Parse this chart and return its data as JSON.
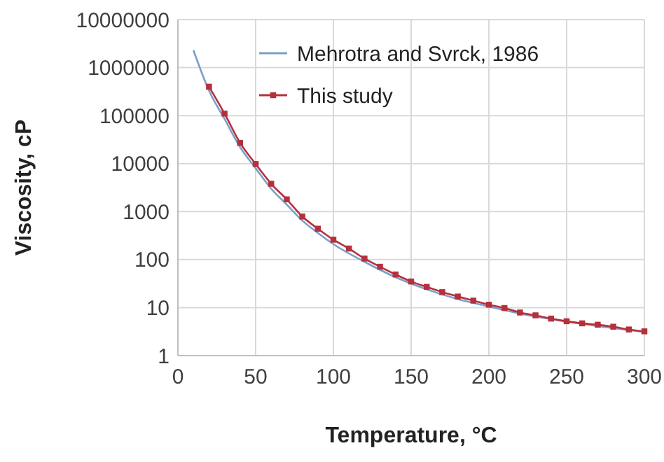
{
  "chart_data": {
    "type": "line",
    "xlabel": "Temperature, °C",
    "ylabel": "Viscosity, cP",
    "log": "y",
    "grid": true,
    "legend": "top right",
    "xlim": [
      0,
      300
    ],
    "xticks": [
      0,
      50,
      100,
      150,
      200,
      250,
      300
    ],
    "ylim": [
      1,
      10000000
    ],
    "yticks": [
      1,
      10,
      100,
      1000,
      10000,
      100000,
      1000000,
      10000000
    ],
    "series": [
      {
        "name": "Mehrotra and Svrck, 1986",
        "color": "#7b9fc9",
        "marker": "none",
        "x": [
          10,
          20,
          30,
          40,
          50,
          60,
          70,
          80,
          90,
          100,
          120,
          140,
          160,
          180,
          200,
          220,
          250,
          300
        ],
        "values": [
          2300000,
          330000,
          85000,
          22000,
          8000,
          3000,
          1400,
          650,
          360,
          210,
          90,
          43,
          24,
          15,
          10.5,
          7.5,
          5.1,
          3.1
        ]
      },
      {
        "name": "This study",
        "color": "#b5303c",
        "marker": "square",
        "x": [
          20,
          30,
          40,
          50,
          60,
          70,
          80,
          90,
          100,
          110,
          120,
          130,
          140,
          150,
          160,
          170,
          180,
          190,
          200,
          210,
          220,
          230,
          240,
          250,
          260,
          270,
          280,
          290,
          300
        ],
        "values": [
          400000,
          110000,
          27000,
          9800,
          3800,
          1800,
          790,
          440,
          260,
          170,
          105,
          71,
          49,
          35,
          27,
          21,
          17,
          14,
          11.5,
          9.8,
          7.9,
          6.9,
          5.9,
          5.2,
          4.7,
          4.4,
          4.0,
          3.5,
          3.2
        ]
      }
    ]
  }
}
